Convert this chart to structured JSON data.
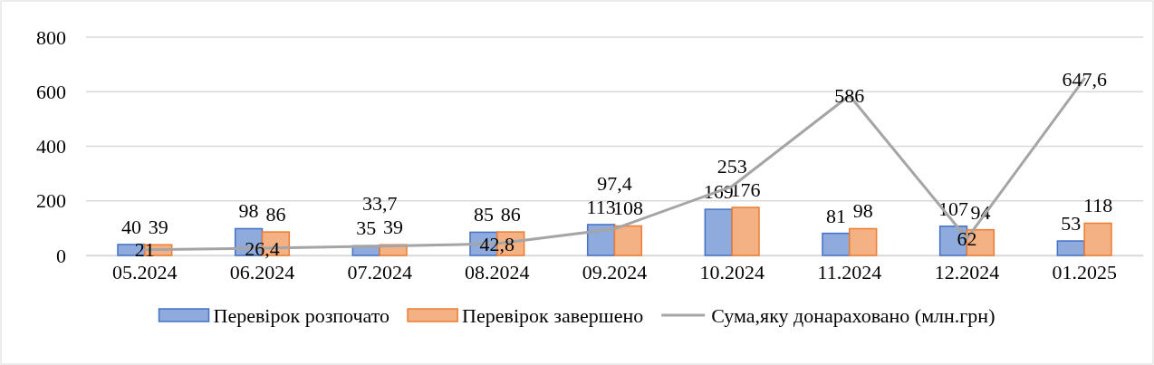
{
  "chart_data": {
    "type": "bar",
    "categories": [
      "05.2024",
      "06.2024",
      "07.2024",
      "08.2024",
      "09.2024",
      "10.2024",
      "11.2024",
      "12.2024",
      "01.2025"
    ],
    "series": [
      {
        "name": "Перевірок розпочато",
        "color": "#8faadc",
        "values": [
          40,
          98,
          35,
          85,
          113,
          169,
          81,
          107,
          53
        ],
        "value_labels": [
          "40",
          "98",
          "35",
          "85",
          "113",
          "169",
          "81",
          "107",
          "53"
        ]
      },
      {
        "name": "Перевірок завершено",
        "color": "#f4b183",
        "values": [
          39,
          86,
          39,
          86,
          108,
          176,
          98,
          94,
          118
        ],
        "value_labels": [
          "39",
          "86",
          "39",
          "86",
          "108",
          "176",
          "98",
          "94",
          "118"
        ]
      },
      {
        "name": "Сума,яку донараховано (млн.грн)",
        "type": "line",
        "color": "#a5a5a5",
        "values": [
          21,
          26.4,
          33.7,
          42.8,
          97.4,
          253,
          586,
          62,
          647.6
        ],
        "value_labels": [
          "21",
          "26,4",
          "33,7",
          "42,8",
          "97,4",
          "253",
          "586",
          "62",
          "647,6"
        ]
      }
    ],
    "ylim": [
      0,
      800
    ],
    "yticks": [
      0,
      200,
      400,
      600,
      800
    ],
    "grid": "y",
    "legend": "bottom",
    "marker": "none"
  }
}
